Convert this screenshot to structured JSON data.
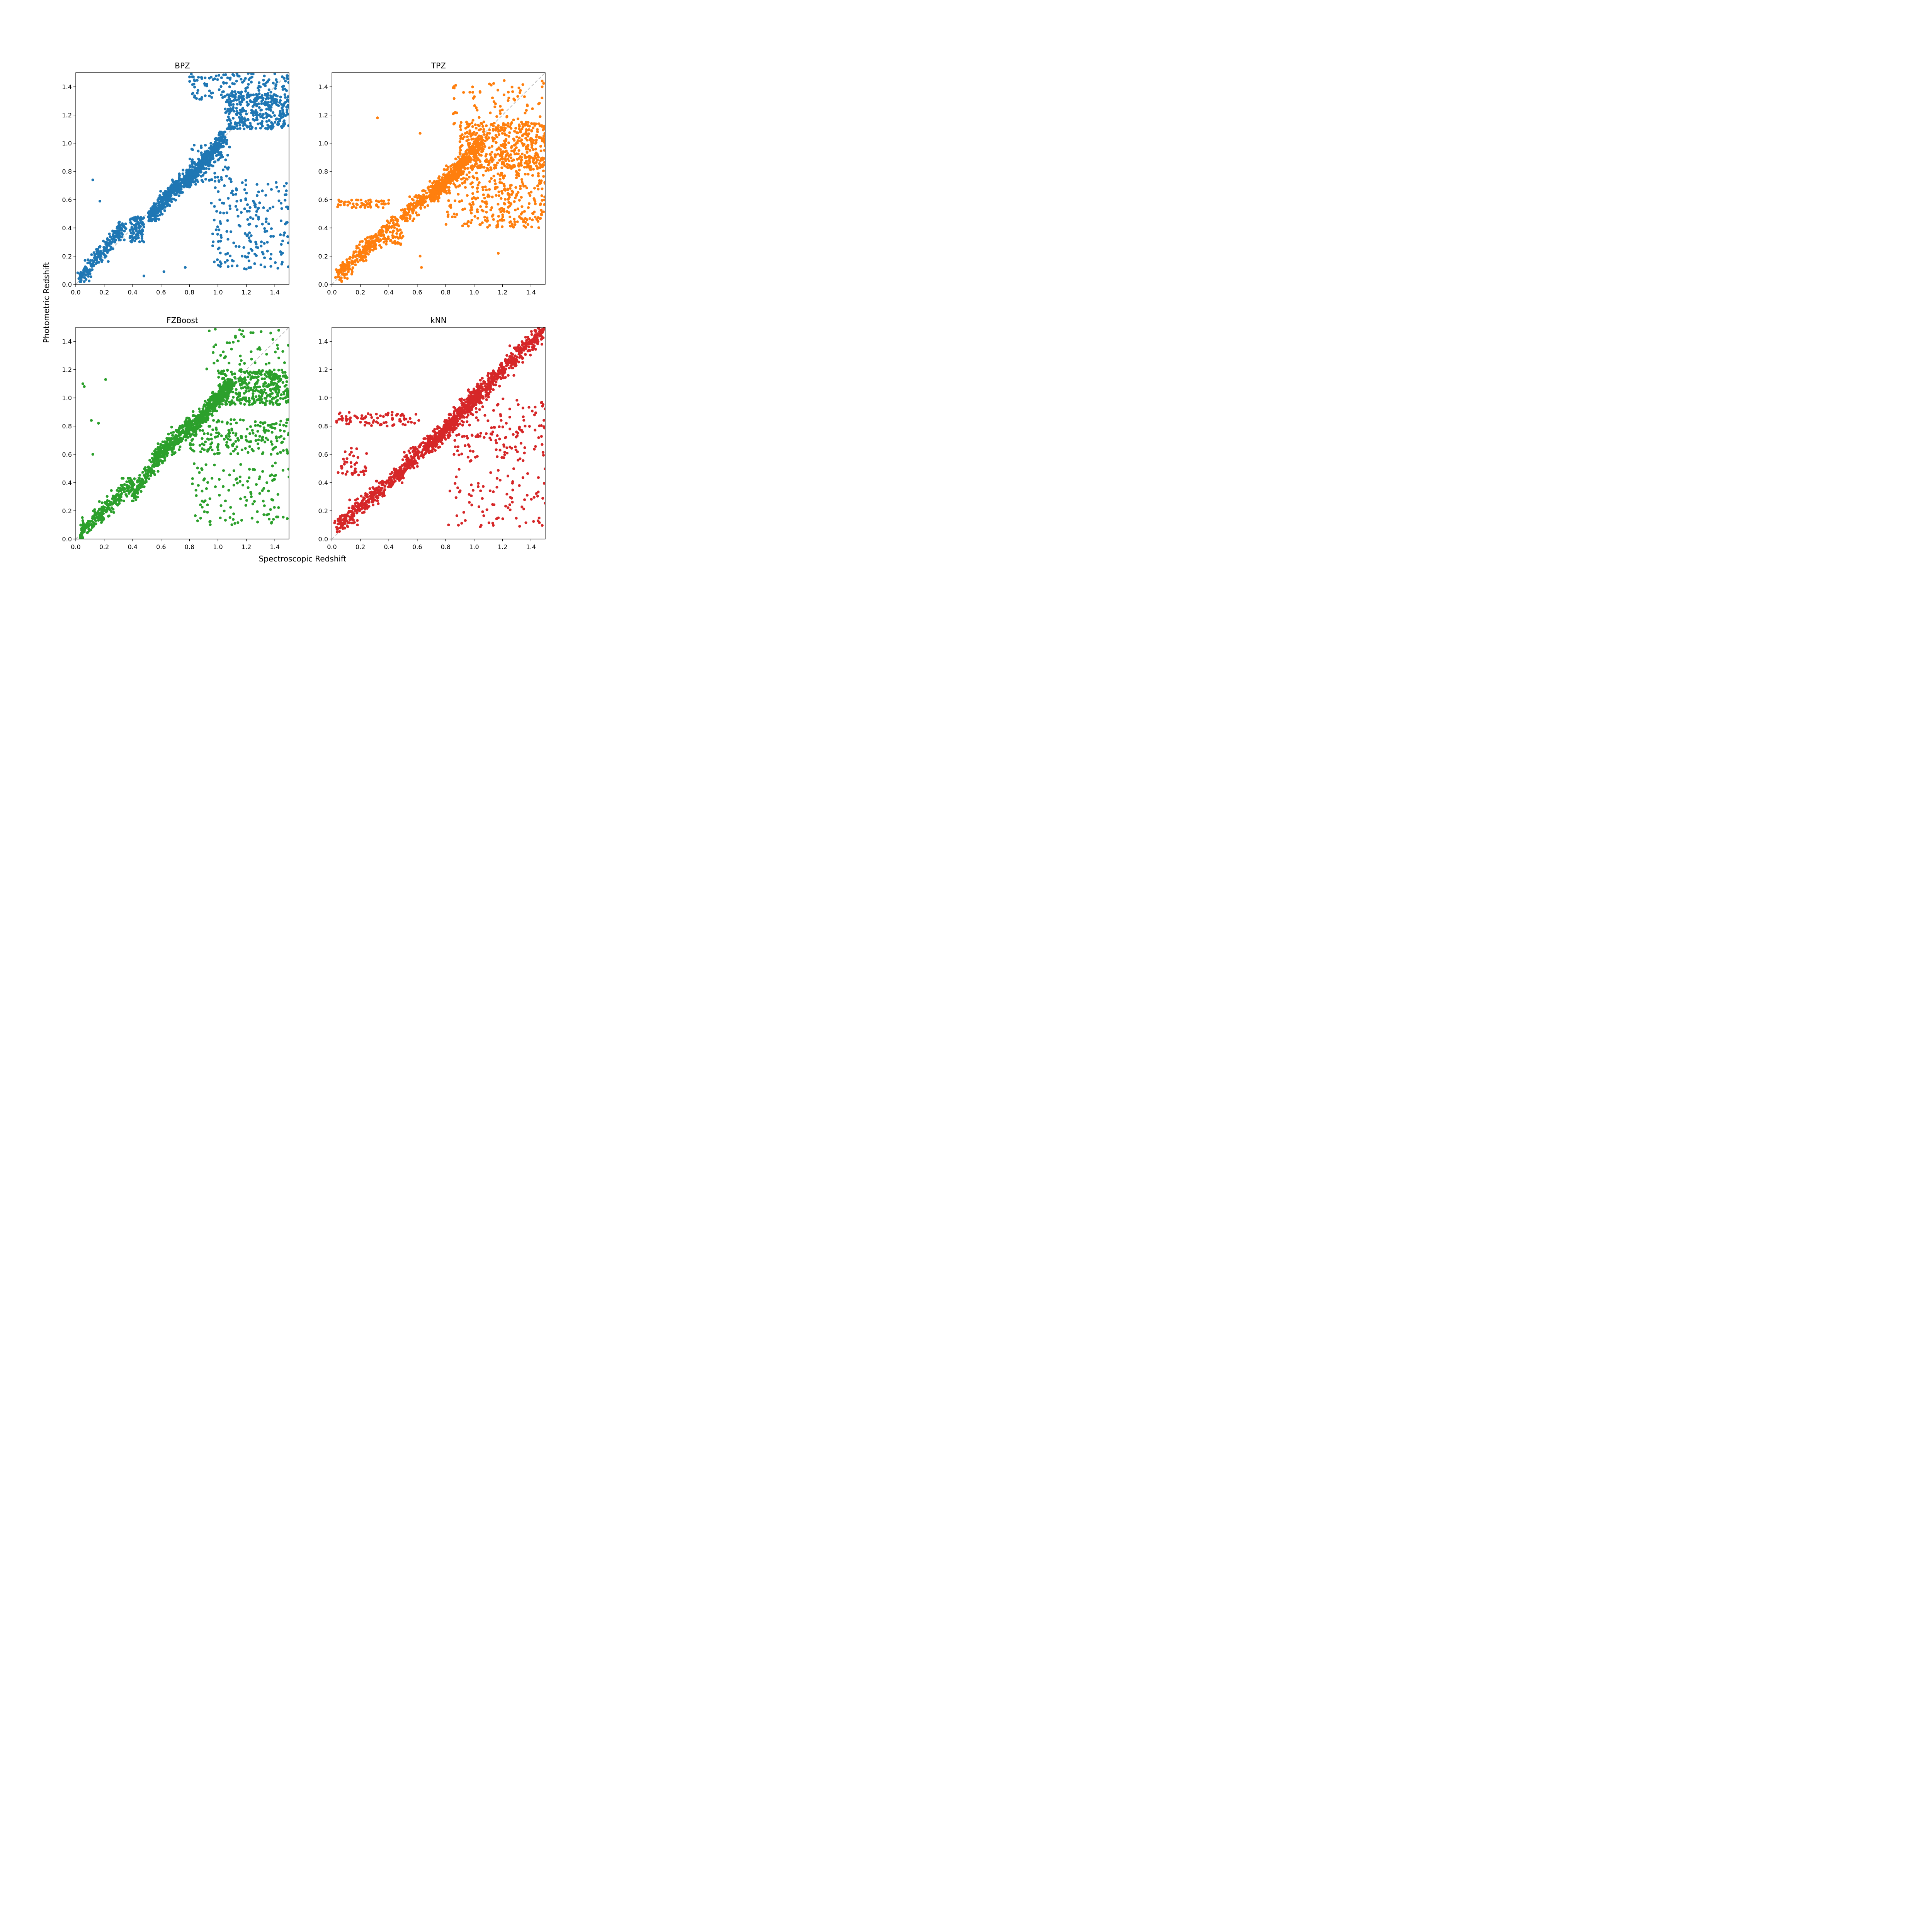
{
  "figure": {
    "xlabel": "Spectroscopic Redshift",
    "ylabel": "Photometric Redshift"
  },
  "chart_data": [
    {
      "type": "scatter",
      "title": "BPZ",
      "color": "#1f77b4",
      "xlim": [
        0.0,
        1.5
      ],
      "ylim": [
        0.0,
        1.5
      ],
      "xticks": [
        "0.0",
        "0.2",
        "0.4",
        "0.6",
        "0.8",
        "1.0",
        "1.2",
        "1.4"
      ],
      "yticks": [
        "0.0",
        "0.2",
        "0.4",
        "0.6",
        "0.8",
        "1.0",
        "1.2",
        "1.4"
      ],
      "reference_line": "y = x (dashed gray)",
      "clusters": [
        {
          "x": [
            0.03,
            0.35
          ],
          "y": [
            0.05,
            0.42
          ],
          "n": 220,
          "along_diagonal": true
        },
        {
          "x": [
            0.38,
            0.48
          ],
          "y": [
            0.3,
            0.48
          ],
          "n": 90
        },
        {
          "x": [
            0.52,
            0.8
          ],
          "y": [
            0.48,
            0.78
          ],
          "n": 380,
          "along_diagonal": true
        },
        {
          "x": [
            0.78,
            1.05
          ],
          "y": [
            0.72,
            1.05
          ],
          "n": 420,
          "along_diagonal": true
        },
        {
          "x": [
            1.05,
            1.5
          ],
          "y": [
            1.1,
            1.35
          ],
          "n": 320
        },
        {
          "x": [
            0.8,
            1.5
          ],
          "y": [
            1.3,
            1.5
          ],
          "n": 150
        },
        {
          "x": [
            0.95,
            1.5
          ],
          "y": [
            0.1,
            0.75
          ],
          "n": 200
        },
        {
          "x": [
            0.8,
            1.1
          ],
          "y": [
            0.72,
            1.0
          ],
          "n": 80
        }
      ],
      "outliers": [
        [
          0.12,
          0.74
        ],
        [
          0.17,
          0.59
        ],
        [
          0.48,
          0.06
        ],
        [
          0.62,
          0.09
        ],
        [
          0.77,
          0.12
        ]
      ]
    },
    {
      "type": "scatter",
      "title": "TPZ",
      "color": "#ff7f0e",
      "xlim": [
        0.0,
        1.5
      ],
      "ylim": [
        0.0,
        1.5
      ],
      "xticks": [
        "0.0",
        "0.2",
        "0.4",
        "0.6",
        "0.8",
        "1.0",
        "1.2",
        "1.4"
      ],
      "yticks": [
        "0.0",
        "0.2",
        "0.4",
        "0.6",
        "0.8",
        "1.0",
        "1.2",
        "1.4"
      ],
      "reference_line": "y = x (dashed gray)",
      "clusters": [
        {
          "x": [
            0.03,
            0.38
          ],
          "y": [
            0.05,
            0.38
          ],
          "n": 260,
          "along_diagonal": true
        },
        {
          "x": [
            0.03,
            0.4
          ],
          "y": [
            0.54,
            0.6
          ],
          "n": 60
        },
        {
          "x": [
            0.38,
            0.5
          ],
          "y": [
            0.28,
            0.48
          ],
          "n": 70
        },
        {
          "x": [
            0.5,
            0.75
          ],
          "y": [
            0.48,
            0.7
          ],
          "n": 200,
          "along_diagonal": true
        },
        {
          "x": [
            0.7,
            1.05
          ],
          "y": [
            0.62,
            1.0
          ],
          "n": 500,
          "along_diagonal": true
        },
        {
          "x": [
            0.9,
            1.5
          ],
          "y": [
            0.82,
            1.15
          ],
          "n": 450
        },
        {
          "x": [
            0.8,
            1.5
          ],
          "y": [
            0.4,
            0.85
          ],
          "n": 350
        },
        {
          "x": [
            0.85,
            1.5
          ],
          "y": [
            1.1,
            1.45
          ],
          "n": 80
        }
      ],
      "outliers": [
        [
          0.32,
          1.18
        ],
        [
          0.62,
          1.07
        ],
        [
          0.63,
          0.12
        ],
        [
          0.62,
          0.2
        ],
        [
          0.87,
          1.41
        ],
        [
          1.17,
          0.22
        ]
      ]
    },
    {
      "type": "scatter",
      "title": "FZBoost",
      "color": "#2ca02c",
      "xlim": [
        0.0,
        1.5
      ],
      "ylim": [
        0.0,
        1.5
      ],
      "xticks": [
        "0.0",
        "0.2",
        "0.4",
        "0.6",
        "0.8",
        "1.0",
        "1.2",
        "1.4"
      ],
      "yticks": [
        "0.0",
        "0.2",
        "0.4",
        "0.6",
        "0.8",
        "1.0",
        "1.2",
        "1.4"
      ],
      "reference_line": "y = x (dashed gray)",
      "clusters": [
        {
          "x": [
            0.03,
            0.4
          ],
          "y": [
            0.04,
            0.4
          ],
          "n": 250,
          "along_diagonal": true
        },
        {
          "x": [
            0.4,
            0.58
          ],
          "y": [
            0.3,
            0.58
          ],
          "n": 120,
          "along_diagonal": true
        },
        {
          "x": [
            0.55,
            0.8
          ],
          "y": [
            0.55,
            0.8
          ],
          "n": 300,
          "along_diagonal": true
        },
        {
          "x": [
            0.78,
            1.1
          ],
          "y": [
            0.75,
            1.1
          ],
          "n": 450,
          "along_diagonal": true
        },
        {
          "x": [
            1.0,
            1.5
          ],
          "y": [
            0.95,
            1.2
          ],
          "n": 380
        },
        {
          "x": [
            0.8,
            1.5
          ],
          "y": [
            0.6,
            0.85
          ],
          "n": 200
        },
        {
          "x": [
            0.82,
            1.5
          ],
          "y": [
            0.1,
            0.55
          ],
          "n": 120
        },
        {
          "x": [
            0.9,
            1.5
          ],
          "y": [
            1.2,
            1.5
          ],
          "n": 50
        }
      ],
      "outliers": [
        [
          0.05,
          1.1
        ],
        [
          0.06,
          1.08
        ],
        [
          0.21,
          1.13
        ],
        [
          0.11,
          0.84
        ],
        [
          0.16,
          0.82
        ],
        [
          0.12,
          0.6
        ]
      ]
    },
    {
      "type": "scatter",
      "title": "kNN",
      "color": "#d62728",
      "xlim": [
        0.0,
        1.5
      ],
      "ylim": [
        0.0,
        1.5
      ],
      "xticks": [
        "0.0",
        "0.2",
        "0.4",
        "0.6",
        "0.8",
        "1.0",
        "1.2",
        "1.4"
      ],
      "yticks": [
        "0.0",
        "0.2",
        "0.4",
        "0.6",
        "0.8",
        "1.0",
        "1.2",
        "1.4"
      ],
      "reference_line": "y = x (dashed gray)",
      "clusters": [
        {
          "x": [
            0.03,
            0.38
          ],
          "y": [
            0.08,
            0.38
          ],
          "n": 240,
          "along_diagonal": true
        },
        {
          "x": [
            0.03,
            0.65
          ],
          "y": [
            0.8,
            0.9
          ],
          "n": 80
        },
        {
          "x": [
            0.03,
            0.25
          ],
          "y": [
            0.45,
            0.65
          ],
          "n": 40
        },
        {
          "x": [
            0.4,
            0.7
          ],
          "y": [
            0.4,
            0.7
          ],
          "n": 250,
          "along_diagonal": true
        },
        {
          "x": [
            0.68,
            1.05
          ],
          "y": [
            0.65,
            1.05
          ],
          "n": 500,
          "along_diagonal": true
        },
        {
          "x": [
            1.0,
            1.5
          ],
          "y": [
            1.0,
            1.5
          ],
          "n": 380,
          "along_diagonal": true
        },
        {
          "x": [
            0.85,
            1.5
          ],
          "y": [
            0.55,
            1.0
          ],
          "n": 150
        },
        {
          "x": [
            0.85,
            1.5
          ],
          "y": [
            0.08,
            0.5
          ],
          "n": 80
        }
      ],
      "outliers": [
        [
          0.06,
          0.85
        ],
        [
          0.18,
          0.1
        ],
        [
          0.82,
          0.1
        ],
        [
          0.83,
          0.34
        ],
        [
          1.17,
          0.15
        ],
        [
          1.32,
          0.09
        ]
      ]
    }
  ]
}
